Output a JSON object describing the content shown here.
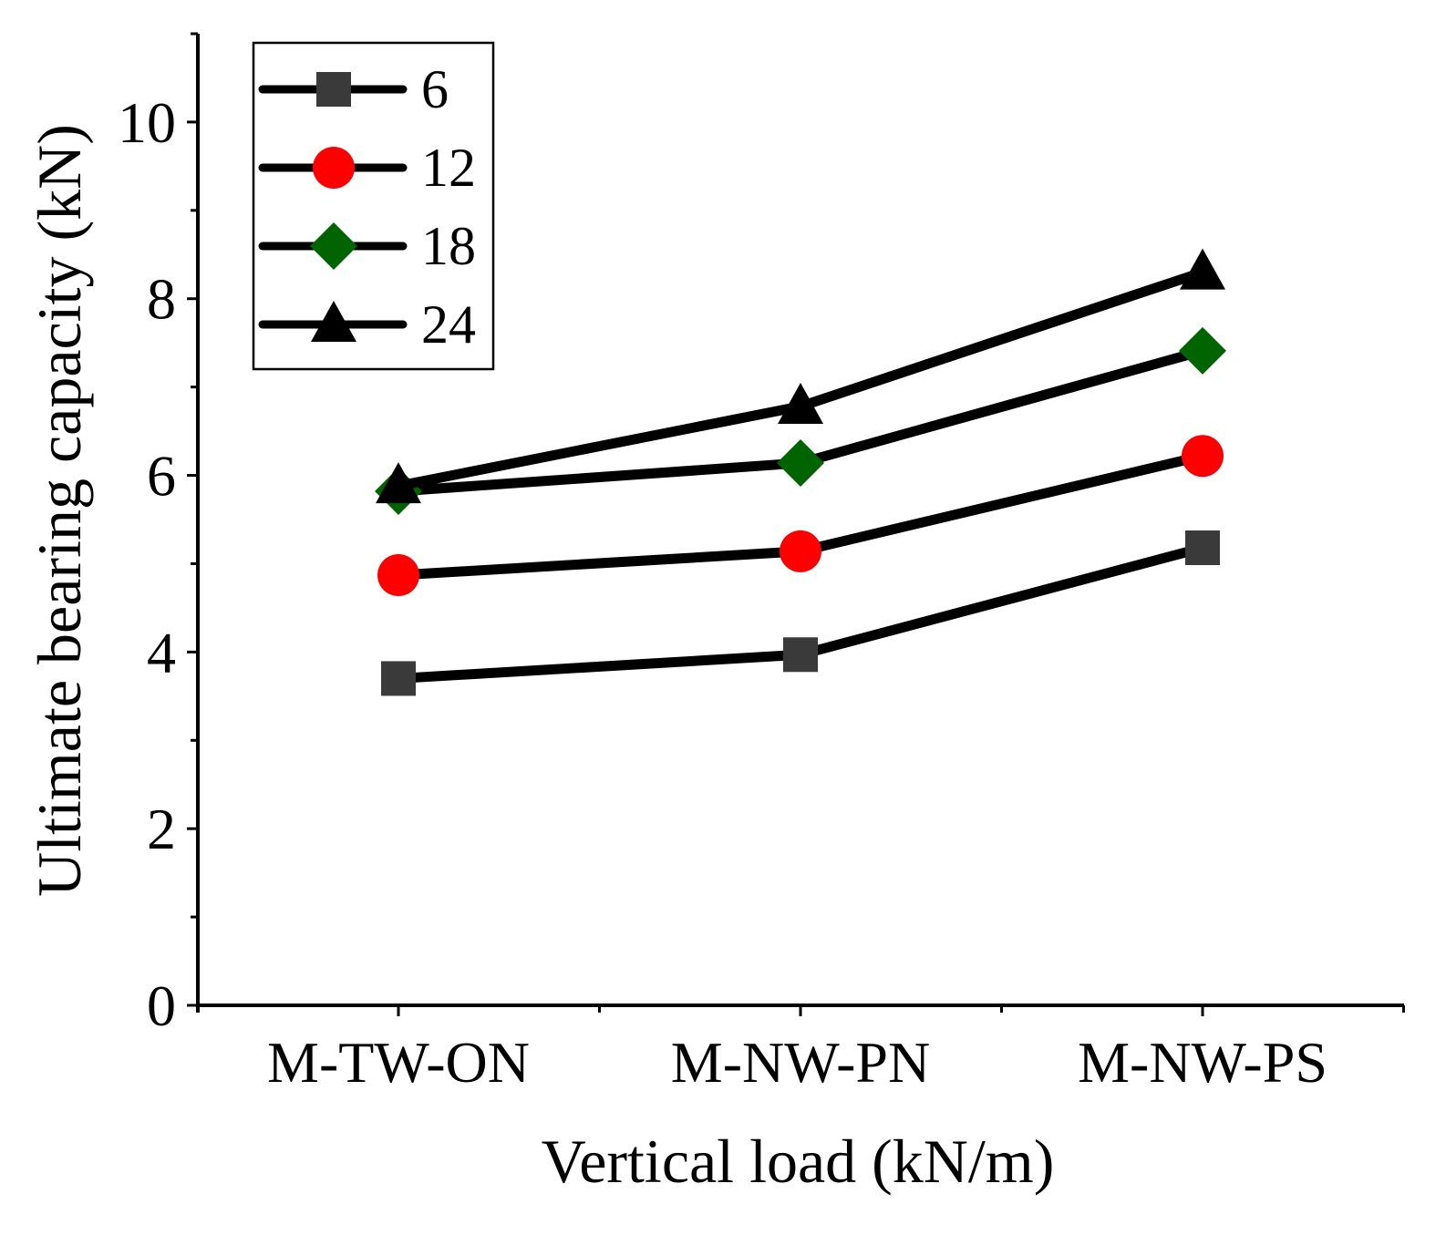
{
  "chart_data": {
    "type": "line",
    "title": "",
    "xlabel": "Vertical load (kN/m)",
    "ylabel": "Ultimate bearing capacity (kN)",
    "categories": [
      "M-TW-ON",
      "M-NW-PN",
      "M-NW-PS"
    ],
    "ylim": [
      0,
      11
    ],
    "yticks": [
      0,
      2,
      4,
      6,
      8,
      10
    ],
    "y_minor_step": 1,
    "grid": false,
    "legend_position": "top-left",
    "line_color": "#000000",
    "series": [
      {
        "name": "6",
        "marker": "square",
        "color": "#3a3a3a",
        "values": [
          3.7,
          3.97,
          5.18
        ]
      },
      {
        "name": "12",
        "marker": "circle",
        "color": "#ff0000",
        "values": [
          4.87,
          5.14,
          6.22
        ]
      },
      {
        "name": "18",
        "marker": "diamond",
        "color": "#006400",
        "values": [
          5.82,
          6.14,
          7.41
        ]
      },
      {
        "name": "24",
        "marker": "triangle",
        "color": "#000000",
        "values": [
          5.88,
          6.78,
          8.3
        ]
      }
    ]
  }
}
